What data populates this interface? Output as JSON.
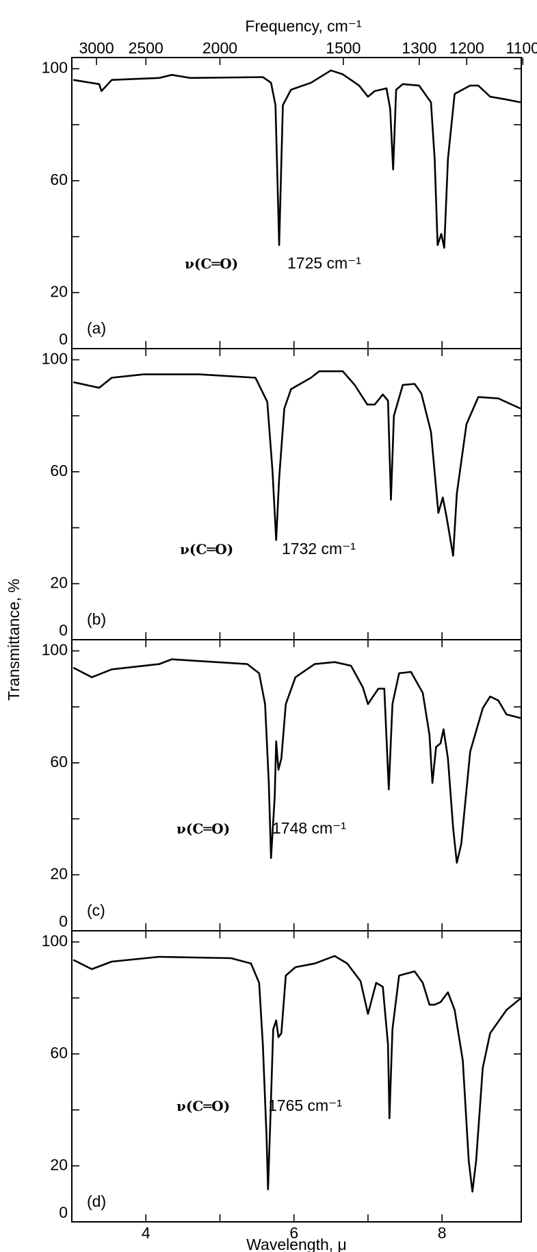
{
  "chart_data": [
    {
      "type": "line",
      "label": "(a)",
      "annotation": "ν(C═O)",
      "annotation_value": "1725 cm⁻¹",
      "x2label": "Frequency, cm⁻¹",
      "x2ticks": [
        3000,
        2500,
        2000,
        1500,
        1300,
        1200,
        1100
      ],
      "xlim": [
        3,
        9.07
      ],
      "ylim": [
        0,
        104
      ],
      "yticks": [
        0,
        20,
        60,
        100
      ],
      "minor_yticks": [
        40,
        80
      ],
      "color": "#000000",
      "x": [
        3.02,
        3.37,
        3.4,
        3.54,
        4.18,
        4.35,
        4.6,
        5.58,
        5.69,
        5.75,
        5.8,
        5.85,
        5.96,
        6.23,
        6.5,
        6.66,
        6.88,
        7.0,
        7.09,
        7.25,
        7.3,
        7.34,
        7.38,
        7.47,
        7.69,
        7.85,
        7.9,
        7.94,
        7.99,
        8.03,
        8.08,
        8.17,
        8.38,
        8.49,
        8.65,
        8.87,
        9.06
      ],
      "values": [
        96,
        94.5,
        92,
        96,
        96.7,
        97.8,
        96.7,
        97,
        95,
        87,
        37,
        87,
        92.5,
        95,
        99.4,
        98,
        94,
        90,
        92,
        93,
        85.6,
        64,
        92.5,
        94.5,
        94,
        88,
        67.7,
        37,
        41,
        36,
        67.7,
        91,
        94,
        94,
        90,
        89,
        88
      ]
    },
    {
      "type": "line",
      "label": "(b)",
      "annotation": "ν(C═O)",
      "annotation_value": "1732 cm⁻¹",
      "ylabel": "Transmittance, %",
      "xlim": [
        3,
        9.07
      ],
      "ylim": [
        0,
        104
      ],
      "yticks": [
        0,
        20,
        60,
        100
      ],
      "minor_yticks": [
        40,
        80
      ],
      "color": "#000000",
      "x": [
        3.02,
        3.37,
        3.54,
        3.97,
        4.72,
        5.48,
        5.64,
        5.71,
        5.76,
        5.8,
        5.87,
        5.96,
        6.23,
        6.34,
        6.66,
        6.82,
        6.99,
        7.09,
        7.2,
        7.27,
        7.31,
        7.35,
        7.47,
        7.63,
        7.72,
        7.85,
        7.95,
        8.01,
        8.06,
        8.15,
        8.2,
        8.33,
        8.49,
        8.76,
        9.06
      ],
      "values": [
        92,
        90,
        93.6,
        94.8,
        94.8,
        93.6,
        85,
        60.5,
        35.6,
        57.7,
        82.6,
        89.5,
        93.6,
        95.9,
        95.9,
        91,
        84,
        84,
        87.6,
        85.4,
        50,
        80,
        91,
        91.4,
        88,
        74.3,
        45.3,
        50.8,
        44,
        30,
        52.2,
        77,
        86.7,
        86.2,
        82.6
      ]
    },
    {
      "type": "line",
      "label": "(c)",
      "annotation": "ν(C═O)",
      "annotation_value": "1748 cm⁻¹",
      "xlim": [
        3,
        9.07
      ],
      "ylim": [
        0,
        104
      ],
      "yticks": [
        0,
        20,
        60,
        100
      ],
      "minor_yticks": [
        40,
        80
      ],
      "color": "#000000",
      "x": [
        3.02,
        3.27,
        3.54,
        4.18,
        4.35,
        5.37,
        5.53,
        5.61,
        5.66,
        5.69,
        5.74,
        5.76,
        5.79,
        5.83,
        5.89,
        6.02,
        6.28,
        6.55,
        6.77,
        6.93,
        7.0,
        7.14,
        7.22,
        7.28,
        7.33,
        7.42,
        7.58,
        7.74,
        7.83,
        7.87,
        7.92,
        7.98,
        8.02,
        8.08,
        8.15,
        8.2,
        8.26,
        8.38,
        8.55,
        8.65,
        8.76,
        8.87,
        9.06
      ],
      "values": [
        94,
        90.6,
        93.4,
        95.3,
        97,
        95.3,
        92,
        81,
        53,
        26,
        48,
        67.7,
        57.5,
        61.6,
        81,
        90.6,
        95.3,
        96,
        94.7,
        87,
        81,
        86.5,
        86.5,
        50.5,
        81,
        92,
        92.5,
        85,
        70,
        52.8,
        65.7,
        67,
        72,
        61.6,
        36.7,
        24.3,
        31,
        64,
        79.5,
        83.7,
        82.3,
        77.3,
        76
      ]
    },
    {
      "type": "line",
      "label": "(d)",
      "annotation": "ν(C═O)",
      "annotation_value": "1765 cm⁻¹",
      "xlabel": "Wavelength, μ",
      "xticks": [
        4,
        6,
        8
      ],
      "minor_xticks": [
        5,
        7
      ],
      "xlim": [
        3,
        9.07
      ],
      "ylim": [
        0,
        104
      ],
      "yticks": [
        0,
        20,
        60,
        100
      ],
      "minor_yticks": [
        40,
        80
      ],
      "color": "#000000",
      "x": [
        3.02,
        3.27,
        3.54,
        4.18,
        5.15,
        5.42,
        5.53,
        5.58,
        5.63,
        5.65,
        5.68,
        5.72,
        5.76,
        5.79,
        5.83,
        5.89,
        6.02,
        6.28,
        6.55,
        6.72,
        6.9,
        7.0,
        7.11,
        7.2,
        7.27,
        7.29,
        7.33,
        7.42,
        7.63,
        7.74,
        7.83,
        7.9,
        7.98,
        8.08,
        8.17,
        8.28,
        8.36,
        8.41,
        8.46,
        8.55,
        8.65,
        8.87,
        9.06
      ],
      "values": [
        93.6,
        90.3,
        93,
        94.7,
        94.2,
        92.3,
        85.4,
        63,
        30,
        11.6,
        35.6,
        68.8,
        72,
        66,
        67.4,
        88,
        91,
        92.3,
        95,
        92.3,
        86,
        74.3,
        85.4,
        84,
        63.3,
        37,
        68.8,
        88,
        89.5,
        85.4,
        77.6,
        77.6,
        78.5,
        82,
        75.7,
        57.7,
        21.8,
        10.8,
        21.8,
        55,
        67.4,
        75.7,
        79.8
      ]
    }
  ]
}
